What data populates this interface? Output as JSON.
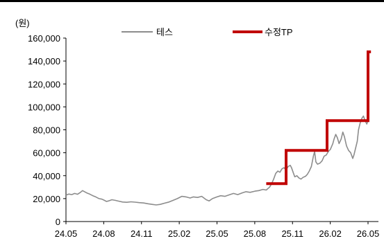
{
  "chart_data": {
    "type": "line",
    "unit_label": "(원)",
    "yticks": [
      "0",
      "20,000",
      "40,000",
      "60,000",
      "80,000",
      "100,000",
      "120,000",
      "140,000",
      "160,000"
    ],
    "ylim": [
      0,
      160000
    ],
    "xticks": [
      "24.05",
      "24.08",
      "24.11",
      "25.02",
      "25.05",
      "25.08",
      "25.11",
      "26.02",
      "26.05"
    ],
    "x_range": [
      "2024-05",
      "2026-05"
    ],
    "legend_position": "top",
    "series": [
      {
        "name": "테스",
        "color": "#8c8c8c",
        "style": "thin",
        "points": [
          [
            "2024-05-01",
            23000
          ],
          [
            "2024-05-08",
            24000
          ],
          [
            "2024-05-15",
            23500
          ],
          [
            "2024-05-22",
            24500
          ],
          [
            "2024-05-29",
            23800
          ],
          [
            "2024-06-05",
            25500
          ],
          [
            "2024-06-10",
            27000
          ],
          [
            "2024-06-15",
            26000
          ],
          [
            "2024-06-20",
            25000
          ],
          [
            "2024-06-27",
            24000
          ],
          [
            "2024-07-05",
            22500
          ],
          [
            "2024-07-12",
            21500
          ],
          [
            "2024-07-20",
            20000
          ],
          [
            "2024-07-27",
            19500
          ],
          [
            "2024-08-02",
            18500
          ],
          [
            "2024-08-07",
            17500
          ],
          [
            "2024-08-12",
            18000
          ],
          [
            "2024-08-20",
            19000
          ],
          [
            "2024-08-28",
            18500
          ],
          [
            "2024-09-05",
            17800
          ],
          [
            "2024-09-15",
            17000
          ],
          [
            "2024-09-25",
            16800
          ],
          [
            "2024-10-05",
            17200
          ],
          [
            "2024-10-15",
            16900
          ],
          [
            "2024-10-25",
            16500
          ],
          [
            "2024-11-05",
            16200
          ],
          [
            "2024-11-15",
            15500
          ],
          [
            "2024-11-25",
            15000
          ],
          [
            "2024-12-05",
            14500
          ],
          [
            "2024-12-15",
            15000
          ],
          [
            "2024-12-25",
            16000
          ],
          [
            "2025-01-05",
            17000
          ],
          [
            "2025-01-15",
            18500
          ],
          [
            "2025-01-25",
            20000
          ],
          [
            "2025-02-05",
            22000
          ],
          [
            "2025-02-15",
            21500
          ],
          [
            "2025-02-25",
            20500
          ],
          [
            "2025-03-05",
            21500
          ],
          [
            "2025-03-15",
            21000
          ],
          [
            "2025-03-25",
            22000
          ],
          [
            "2025-04-05",
            19000
          ],
          [
            "2025-04-12",
            18000
          ],
          [
            "2025-04-20",
            20000
          ],
          [
            "2025-05-01",
            21500
          ],
          [
            "2025-05-10",
            22500
          ],
          [
            "2025-05-20",
            22000
          ],
          [
            "2025-06-01",
            23500
          ],
          [
            "2025-06-10",
            24500
          ],
          [
            "2025-06-20",
            23500
          ],
          [
            "2025-07-01",
            25000
          ],
          [
            "2025-07-10",
            26000
          ],
          [
            "2025-07-20",
            25500
          ],
          [
            "2025-08-01",
            26500
          ],
          [
            "2025-08-10",
            27000
          ],
          [
            "2025-08-20",
            28000
          ],
          [
            "2025-08-28",
            27500
          ],
          [
            "2025-09-05",
            30000
          ],
          [
            "2025-09-10",
            33000
          ],
          [
            "2025-09-15",
            37000
          ],
          [
            "2025-09-20",
            42000
          ],
          [
            "2025-09-25",
            44000
          ],
          [
            "2025-09-30",
            43000
          ],
          [
            "2025-10-05",
            46000
          ],
          [
            "2025-10-10",
            47000
          ],
          [
            "2025-10-15",
            45000
          ],
          [
            "2025-10-20",
            48000
          ],
          [
            "2025-10-25",
            49000
          ],
          [
            "2025-10-28",
            47000
          ],
          [
            "2025-11-01",
            43000
          ],
          [
            "2025-11-05",
            39000
          ],
          [
            "2025-11-10",
            40000
          ],
          [
            "2025-11-15",
            38000
          ],
          [
            "2025-11-20",
            37000
          ],
          [
            "2025-11-25",
            38500
          ],
          [
            "2025-12-01",
            39500
          ],
          [
            "2025-12-05",
            41000
          ],
          [
            "2025-12-10",
            44000
          ],
          [
            "2025-12-15",
            48000
          ],
          [
            "2025-12-20",
            57000
          ],
          [
            "2025-12-23",
            61000
          ],
          [
            "2025-12-26",
            52000
          ],
          [
            "2025-12-30",
            50000
          ],
          [
            "2026-01-05",
            51000
          ],
          [
            "2026-01-10",
            53000
          ],
          [
            "2026-01-15",
            57000
          ],
          [
            "2026-01-20",
            58000
          ],
          [
            "2026-01-25",
            61000
          ],
          [
            "2026-01-30",
            63000
          ],
          [
            "2026-02-05",
            68000
          ],
          [
            "2026-02-08",
            72000
          ],
          [
            "2026-02-12",
            76000
          ],
          [
            "2026-02-16",
            73000
          ],
          [
            "2026-02-20",
            68000
          ],
          [
            "2026-02-25",
            72000
          ],
          [
            "2026-03-01",
            78000
          ],
          [
            "2026-03-05",
            74000
          ],
          [
            "2026-03-10",
            66000
          ],
          [
            "2026-03-15",
            62000
          ],
          [
            "2026-03-20",
            60000
          ],
          [
            "2026-03-25",
            55000
          ],
          [
            "2026-03-28",
            58000
          ],
          [
            "2026-04-01",
            64000
          ],
          [
            "2026-04-05",
            70000
          ],
          [
            "2026-04-08",
            80000
          ],
          [
            "2026-04-12",
            86000
          ],
          [
            "2026-04-16",
            90000
          ],
          [
            "2026-04-20",
            92000
          ],
          [
            "2026-04-24",
            88000
          ],
          [
            "2026-04-28",
            85000
          ],
          [
            "2026-05-02",
            89000
          ]
        ]
      },
      {
        "name": "수정TP",
        "color": "#c00000",
        "style": "step",
        "points": [
          [
            "2025-08-28",
            33000
          ],
          [
            "2025-10-15",
            33000
          ],
          [
            "2025-10-15",
            62000
          ],
          [
            "2026-01-22",
            62000
          ],
          [
            "2026-01-22",
            88000
          ],
          [
            "2026-05-01",
            88000
          ],
          [
            "2026-05-01",
            148000
          ],
          [
            "2026-05-08",
            148000
          ]
        ]
      }
    ]
  }
}
